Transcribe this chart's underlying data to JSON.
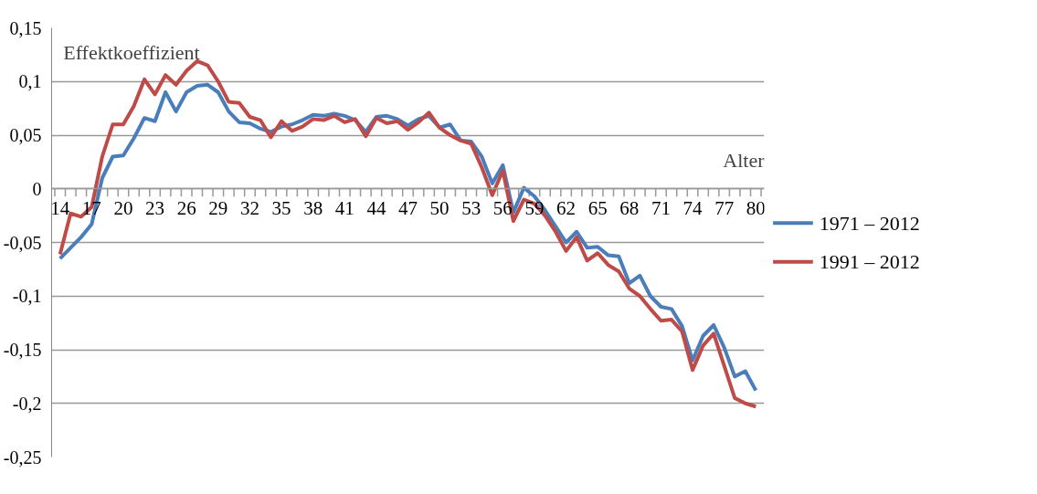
{
  "chart_data": {
    "type": "line",
    "xlabel": "Alter",
    "ylabel": "Effektkoeffizient",
    "categories": [
      "14",
      null,
      null,
      "17",
      null,
      null,
      "20",
      null,
      null,
      "23",
      null,
      null,
      "26",
      null,
      null,
      "29",
      null,
      null,
      "32",
      null,
      null,
      "35",
      null,
      null,
      "38",
      null,
      null,
      "41",
      null,
      null,
      "44",
      null,
      null,
      "47",
      null,
      null,
      "50",
      null,
      null,
      "53",
      null,
      null,
      "56",
      null,
      null,
      "59",
      null,
      null,
      "62",
      null,
      null,
      "65",
      null,
      null,
      "68",
      null,
      null,
      "71",
      null,
      null,
      "74",
      null,
      null,
      "77",
      null,
      null,
      "80"
    ],
    "series": [
      {
        "name": "1971 – 2012",
        "color": "#4a7ebb",
        "values": [
          -0.065,
          -0.055,
          -0.045,
          -0.033,
          0.01,
          0.03,
          0.031,
          0.047,
          0.066,
          0.063,
          0.09,
          0.072,
          0.09,
          0.096,
          0.097,
          0.09,
          0.072,
          0.062,
          0.061,
          0.056,
          0.053,
          0.058,
          0.06,
          0.064,
          0.069,
          0.068,
          0.07,
          0.068,
          0.064,
          0.053,
          0.067,
          0.068,
          0.065,
          0.059,
          0.065,
          0.068,
          0.057,
          0.06,
          0.045,
          0.044,
          0.03,
          0.005,
          0.022,
          -0.022,
          0.001,
          -0.007,
          -0.02,
          -0.035,
          -0.05,
          -0.04,
          -0.055,
          -0.054,
          -0.062,
          -0.063,
          -0.088,
          -0.081,
          -0.1,
          -0.11,
          -0.112,
          -0.128,
          -0.16,
          -0.137,
          -0.127,
          -0.148,
          -0.175,
          -0.17,
          -0.188
        ]
      },
      {
        "name": "1991 – 2012",
        "color": "#be4b48",
        "values": [
          -0.061,
          -0.023,
          -0.026,
          -0.017,
          0.03,
          0.06,
          0.06,
          0.077,
          0.102,
          0.088,
          0.106,
          0.097,
          0.11,
          0.119,
          0.115,
          0.1,
          0.081,
          0.08,
          0.067,
          0.064,
          0.048,
          0.063,
          0.054,
          0.058,
          0.065,
          0.064,
          0.068,
          0.062,
          0.065,
          0.049,
          0.066,
          0.061,
          0.063,
          0.055,
          0.062,
          0.071,
          0.057,
          0.05,
          0.045,
          0.042,
          0.02,
          -0.006,
          0.017,
          -0.03,
          -0.01,
          -0.014,
          -0.025,
          -0.04,
          -0.058,
          -0.045,
          -0.067,
          -0.06,
          -0.071,
          -0.077,
          -0.093,
          -0.1,
          -0.112,
          -0.123,
          -0.122,
          -0.133,
          -0.169,
          -0.146,
          -0.135,
          -0.165,
          -0.195,
          -0.2,
          -0.203
        ]
      }
    ],
    "ylim": [
      -0.25,
      0.15
    ],
    "yticks": [
      {
        "value": -0.25,
        "label": "-0,25"
      },
      {
        "value": -0.2,
        "label": "-0,2"
      },
      {
        "value": -0.15,
        "label": "-0,15"
      },
      {
        "value": -0.1,
        "label": "-0,1"
      },
      {
        "value": -0.05,
        "label": "-0,05"
      },
      {
        "value": 0,
        "label": "0"
      },
      {
        "value": 0.05,
        "label": "0,05"
      },
      {
        "value": 0.1,
        "label": "0,1"
      },
      {
        "value": 0.15,
        "label": "0,15"
      }
    ],
    "grid": "y",
    "legend": "right",
    "line_style": "solid",
    "marker": "none"
  }
}
